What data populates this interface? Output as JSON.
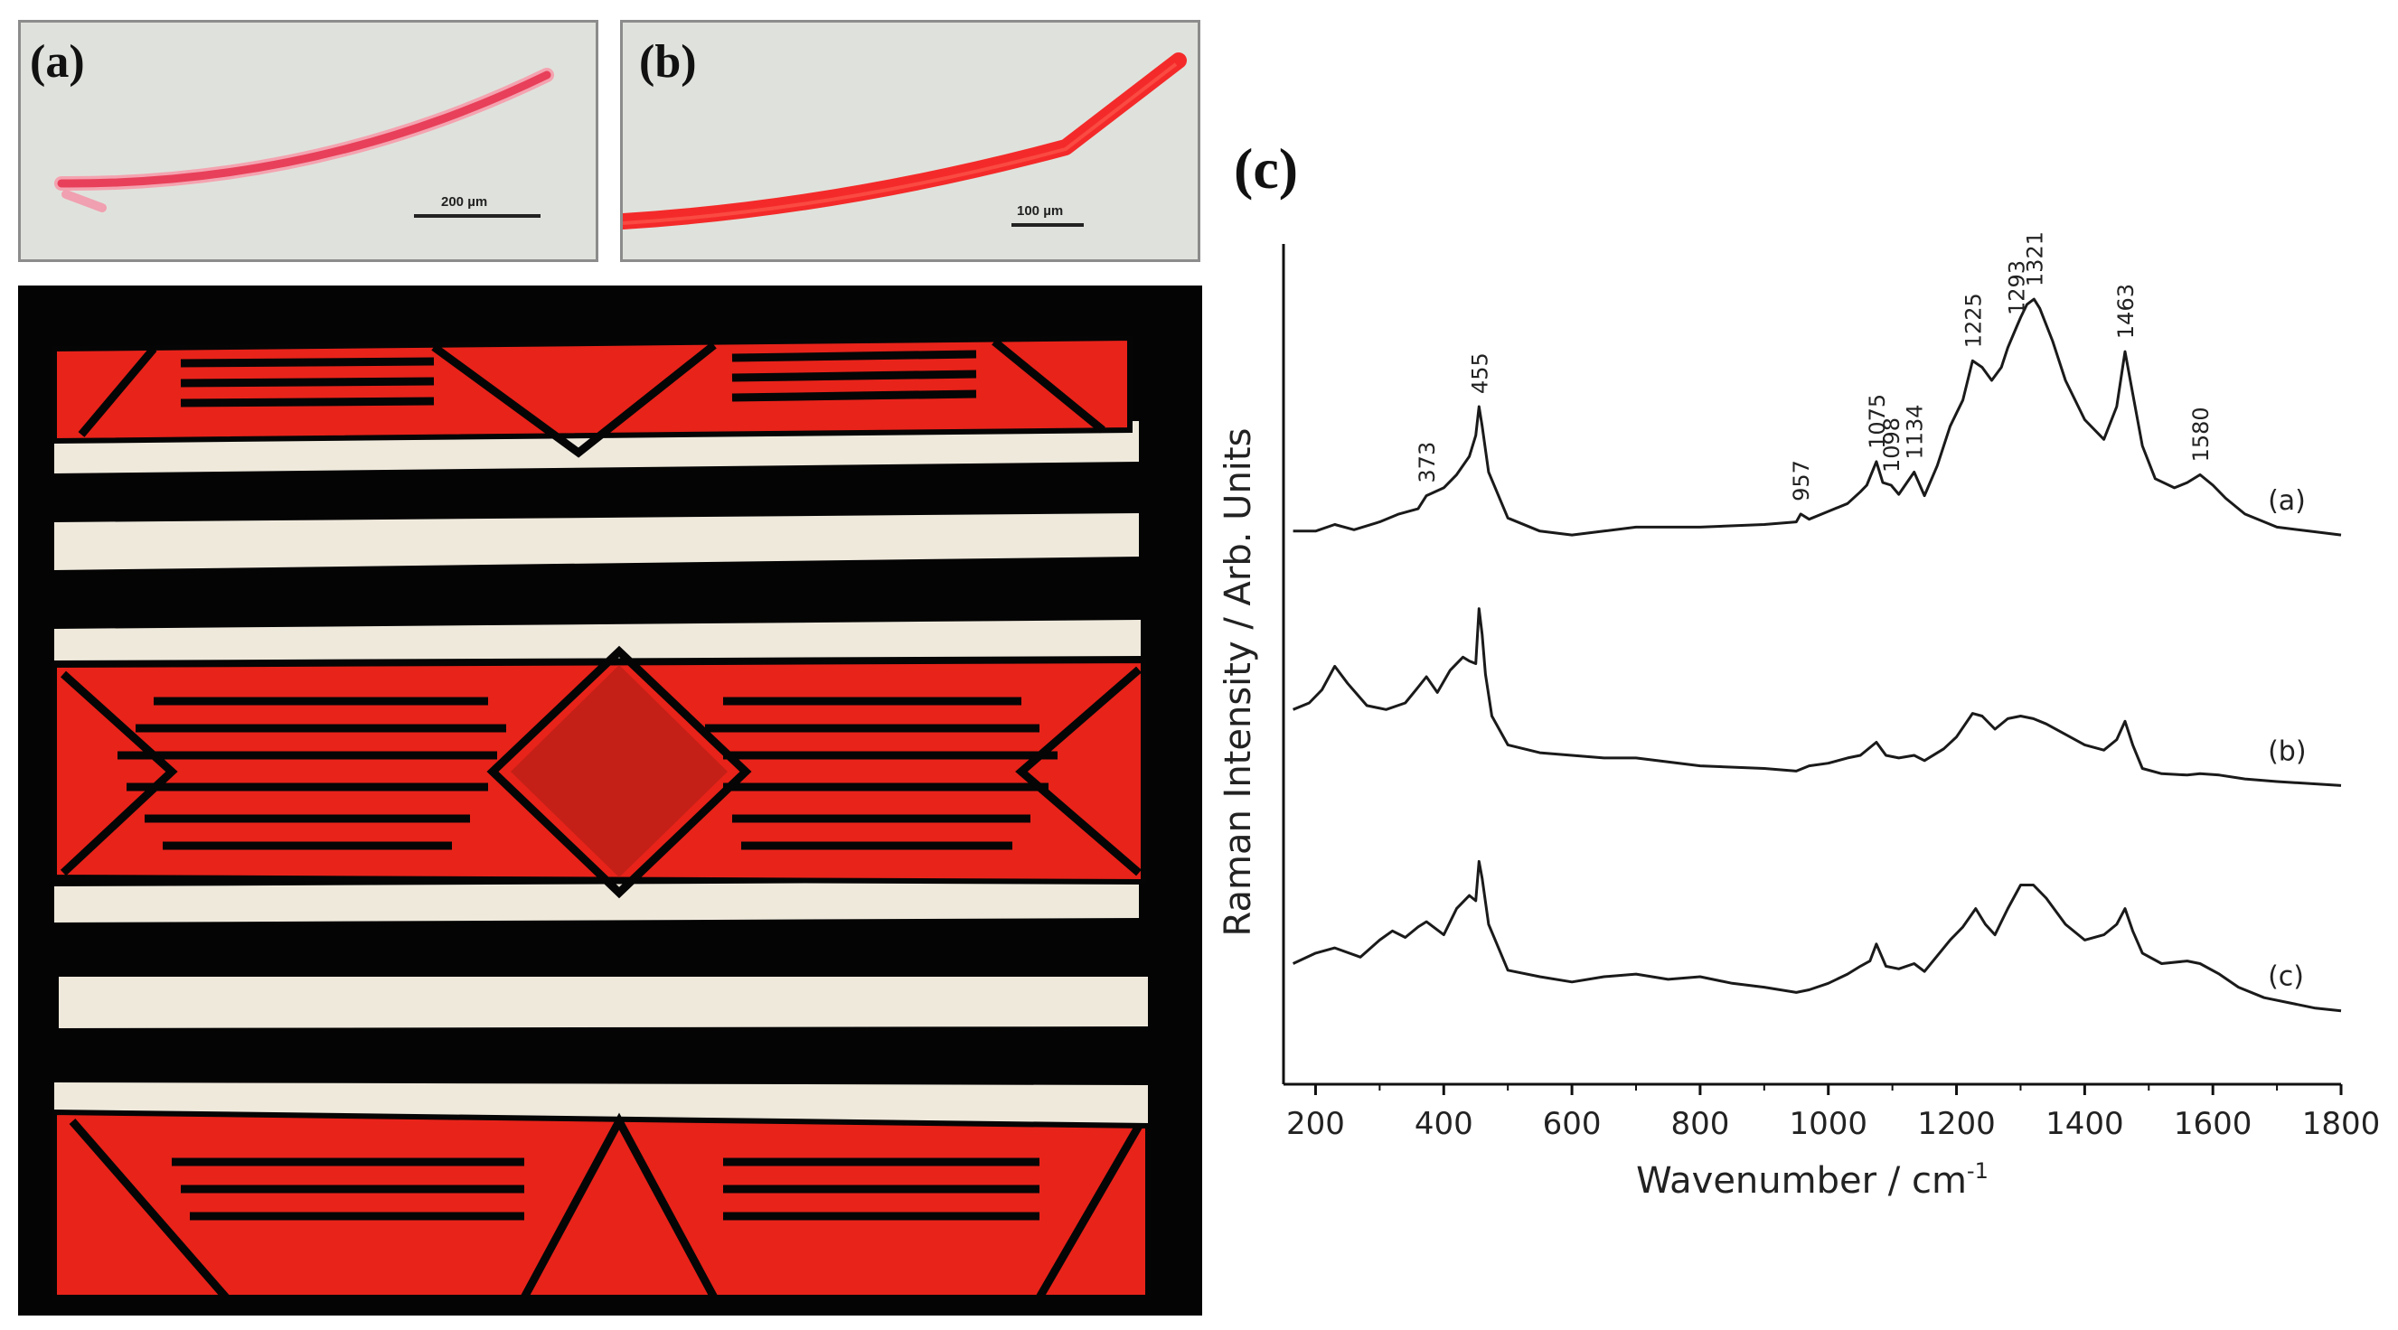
{
  "figure": {
    "panel_a": {
      "label": "(a)",
      "scale_text": "200 µm"
    },
    "panel_b": {
      "label": "(b)",
      "scale_text": "100 µm"
    },
    "panel_c": {
      "label": "(c)"
    },
    "colors": {
      "fiber_pink": "#e8405a",
      "fiber_red": "#f42a2a",
      "blanket_red": "#e8231a",
      "blanket_white": "#efe9dc",
      "blanket_black": "#050505",
      "spectrum": "#1a1a1a"
    }
  },
  "chart_data": {
    "type": "line",
    "title": "",
    "xlabel": "Wavenumber / cm",
    "xlabel_sup": "-1",
    "ylabel": "Raman Intensity / Arb. Units",
    "xlim": [
      150,
      1800
    ],
    "xticks": [
      200,
      400,
      600,
      800,
      1000,
      1200,
      1400,
      1600,
      1800
    ],
    "xtick_labels": [
      "200",
      "400",
      "600",
      "800",
      "1000",
      "1200",
      "1400",
      "1600",
      "1800"
    ],
    "grid": false,
    "peak_labels": [
      {
        "x": 373,
        "text": "373"
      },
      {
        "x": 455,
        "text": "455"
      },
      {
        "x": 957,
        "text": "957"
      },
      {
        "x": 1075,
        "text": "1075"
      },
      {
        "x": 1134,
        "text": "1134"
      },
      {
        "x": 1098,
        "text": "1098"
      },
      {
        "x": 1225,
        "text": "1225"
      },
      {
        "x": 1293,
        "text": "1293"
      },
      {
        "x": 1321,
        "text": "1321"
      },
      {
        "x": 1463,
        "text": "1463"
      },
      {
        "x": 1580,
        "text": "1580"
      }
    ],
    "series": [
      {
        "name": "(a)",
        "offset": 2.0,
        "x": [
          165,
          200,
          230,
          260,
          300,
          330,
          360,
          373,
          400,
          420,
          440,
          450,
          455,
          460,
          470,
          500,
          550,
          600,
          650,
          700,
          800,
          900,
          950,
          957,
          970,
          1000,
          1030,
          1050,
          1060,
          1075,
          1085,
          1098,
          1110,
          1134,
          1150,
          1170,
          1190,
          1200,
          1210,
          1225,
          1240,
          1255,
          1270,
          1280,
          1293,
          1300,
          1310,
          1321,
          1330,
          1350,
          1370,
          1400,
          1430,
          1450,
          1463,
          1475,
          1490,
          1510,
          1540,
          1560,
          1580,
          1600,
          1620,
          1650,
          1700,
          1750,
          1800
        ],
        "y": [
          0.05,
          0.05,
          0.1,
          0.06,
          0.12,
          0.18,
          0.22,
          0.32,
          0.38,
          0.48,
          0.62,
          0.78,
          1.0,
          0.85,
          0.5,
          0.15,
          0.05,
          0.02,
          0.05,
          0.08,
          0.08,
          0.1,
          0.12,
          0.18,
          0.14,
          0.2,
          0.26,
          0.35,
          0.4,
          0.58,
          0.42,
          0.4,
          0.33,
          0.5,
          0.32,
          0.55,
          0.85,
          0.95,
          1.05,
          1.35,
          1.3,
          1.2,
          1.3,
          1.45,
          1.6,
          1.68,
          1.78,
          1.82,
          1.75,
          1.5,
          1.2,
          0.9,
          0.75,
          1.0,
          1.42,
          1.1,
          0.7,
          0.45,
          0.38,
          0.42,
          0.48,
          0.4,
          0.3,
          0.18,
          0.08,
          0.05,
          0.02
        ]
      },
      {
        "name": "(b)",
        "offset": 1.0,
        "x": [
          165,
          190,
          210,
          230,
          250,
          280,
          310,
          340,
          360,
          373,
          390,
          410,
          430,
          440,
          450,
          455,
          460,
          465,
          475,
          500,
          550,
          600,
          650,
          700,
          800,
          900,
          950,
          970,
          1000,
          1030,
          1050,
          1075,
          1090,
          1110,
          1134,
          1150,
          1180,
          1200,
          1225,
          1240,
          1260,
          1280,
          1300,
          1320,
          1340,
          1370,
          1400,
          1430,
          1450,
          1463,
          1475,
          1490,
          1520,
          1560,
          1580,
          1610,
          1650,
          1700,
          1800
        ],
        "y": [
          0.55,
          0.6,
          0.7,
          0.88,
          0.75,
          0.58,
          0.55,
          0.6,
          0.72,
          0.8,
          0.68,
          0.85,
          0.95,
          0.92,
          0.9,
          1.32,
          1.12,
          0.82,
          0.5,
          0.28,
          0.22,
          0.2,
          0.18,
          0.18,
          0.12,
          0.1,
          0.08,
          0.12,
          0.14,
          0.18,
          0.2,
          0.3,
          0.2,
          0.18,
          0.2,
          0.16,
          0.25,
          0.34,
          0.52,
          0.5,
          0.4,
          0.48,
          0.5,
          0.48,
          0.44,
          0.36,
          0.28,
          0.24,
          0.32,
          0.46,
          0.28,
          0.1,
          0.06,
          0.05,
          0.06,
          0.05,
          0.02,
          0.0,
          -0.03
        ]
      },
      {
        "name": "(c)",
        "offset": 0.0,
        "x": [
          165,
          200,
          230,
          270,
          300,
          320,
          340,
          360,
          373,
          400,
          420,
          440,
          450,
          455,
          460,
          470,
          500,
          550,
          600,
          650,
          700,
          750,
          800,
          850,
          900,
          950,
          970,
          1000,
          1030,
          1050,
          1065,
          1075,
          1090,
          1110,
          1134,
          1150,
          1170,
          1190,
          1210,
          1230,
          1245,
          1260,
          1280,
          1300,
          1320,
          1340,
          1370,
          1400,
          1430,
          1450,
          1463,
          1475,
          1490,
          1520,
          1560,
          1580,
          1610,
          1640,
          1680,
          1720,
          1760,
          1800
        ],
        "y": [
          0.3,
          0.38,
          0.42,
          0.35,
          0.48,
          0.55,
          0.5,
          0.58,
          0.62,
          0.52,
          0.72,
          0.82,
          0.78,
          1.08,
          0.95,
          0.6,
          0.25,
          0.2,
          0.16,
          0.2,
          0.22,
          0.18,
          0.2,
          0.15,
          0.12,
          0.08,
          0.1,
          0.15,
          0.22,
          0.28,
          0.32,
          0.45,
          0.28,
          0.26,
          0.3,
          0.24,
          0.36,
          0.48,
          0.58,
          0.72,
          0.6,
          0.52,
          0.72,
          0.9,
          0.9,
          0.8,
          0.6,
          0.48,
          0.52,
          0.6,
          0.72,
          0.55,
          0.38,
          0.3,
          0.32,
          0.3,
          0.22,
          0.12,
          0.04,
          0.0,
          -0.04,
          -0.06
        ]
      }
    ]
  }
}
